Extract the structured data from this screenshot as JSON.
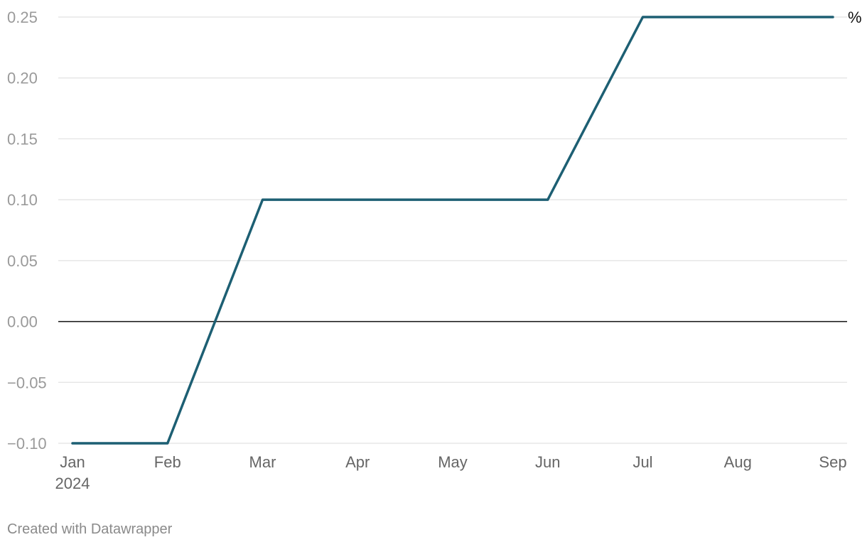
{
  "chart_data": {
    "type": "line",
    "title": "",
    "xlabel": "",
    "ylabel": "",
    "unit_label": "%",
    "x": [
      "2024-01",
      "2024-02",
      "2024-03",
      "2024-04",
      "2024-05",
      "2024-06",
      "2024-07",
      "2024-08",
      "2024-09"
    ],
    "x_tick_labels": [
      "Jan",
      "Feb",
      "Mar",
      "Apr",
      "May",
      "Jun",
      "Jul",
      "Aug",
      "Sep"
    ],
    "x_tick_sublabel": "2024",
    "series": [
      {
        "values": [
          -0.1,
          -0.1,
          0.1,
          0.1,
          0.1,
          0.1,
          0.25,
          0.25,
          0.25
        ],
        "color": "#1d5f73"
      }
    ],
    "ylim": [
      -0.1,
      0.25
    ],
    "y_ticks": [
      -0.1,
      -0.05,
      0.0,
      0.05,
      0.1,
      0.15,
      0.2,
      0.25
    ],
    "y_tick_labels": [
      "−0.10",
      "−0.05",
      "0.00",
      "0.05",
      "0.10",
      "0.15",
      "0.20",
      "0.25"
    ],
    "grid": true,
    "legend": "none",
    "zero_line_color": "#111111",
    "grid_color": "#e2e2e2"
  },
  "footer": {
    "credit": "Created with Datawrapper"
  }
}
